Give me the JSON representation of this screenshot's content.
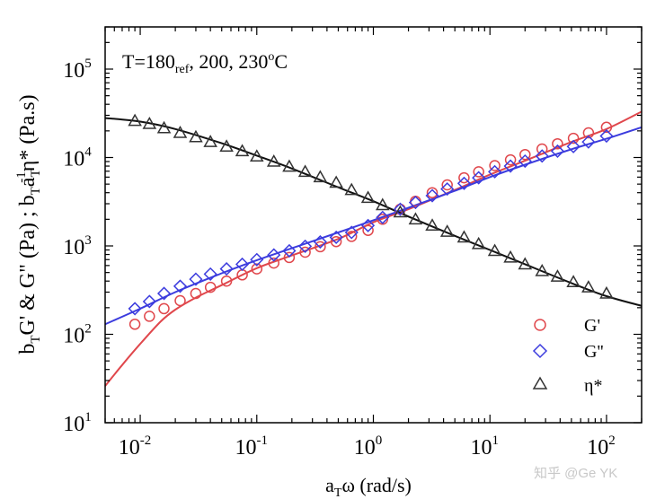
{
  "chart_data": {
    "type": "scatter",
    "title": "",
    "annotation": {
      "base": "T=180",
      "sub": "ref",
      "rest": ", 200, 230",
      "deg": "o",
      "unit": "C"
    },
    "xscale": "log",
    "yscale": "log",
    "xlim": [
      0.005,
      200
    ],
    "ylim": [
      10,
      300000
    ],
    "xlabel": {
      "a": "a",
      "sub": "T",
      "rest": "ω (rad/s)"
    },
    "ylabel": {
      "p1": "b",
      "s1": "T",
      "p2": "G' & G\" (Pa) ;  b",
      "s2": "T",
      "p3": "a",
      "s3": "T",
      "sup3": "-1",
      "p4": "η* (Pa.s)"
    },
    "xticks": [
      {
        "value": 0.01,
        "base": "10",
        "exp": "-2"
      },
      {
        "value": 0.1,
        "base": "10",
        "exp": "-1"
      },
      {
        "value": 1,
        "base": "10",
        "exp": "0"
      },
      {
        "value": 10,
        "base": "10",
        "exp": "1"
      },
      {
        "value": 100,
        "base": "10",
        "exp": "2"
      }
    ],
    "yticks": [
      {
        "value": 10,
        "base": "10",
        "exp": "1"
      },
      {
        "value": 100,
        "base": "10",
        "exp": "2"
      },
      {
        "value": 1000,
        "base": "10",
        "exp": "3"
      },
      {
        "value": 10000,
        "base": "10",
        "exp": "4"
      },
      {
        "value": 100000,
        "base": "10",
        "exp": "5"
      }
    ],
    "legend_position": "bottom-right",
    "series": [
      {
        "name": "G'",
        "marker": "circle",
        "color": "#e0474c",
        "x": [
          0.009,
          0.012,
          0.016,
          0.022,
          0.03,
          0.04,
          0.055,
          0.075,
          0.1,
          0.14,
          0.19,
          0.26,
          0.35,
          0.48,
          0.65,
          0.9,
          1.2,
          1.7,
          2.3,
          3.2,
          4.3,
          6,
          8,
          11,
          15,
          20,
          28,
          38,
          52,
          70,
          100
        ],
        "y": [
          130,
          160,
          195,
          240,
          290,
          340,
          400,
          470,
          550,
          640,
          740,
          850,
          980,
          1120,
          1280,
          1500,
          2000,
          2600,
          3200,
          4000,
          4900,
          5900,
          6900,
          8100,
          9400,
          10800,
          12500,
          14300,
          16500,
          19000,
          22000
        ]
      },
      {
        "name": "G''",
        "marker": "diamond",
        "color": "#3c3cde",
        "x": [
          0.009,
          0.012,
          0.016,
          0.022,
          0.03,
          0.04,
          0.055,
          0.075,
          0.1,
          0.14,
          0.19,
          0.26,
          0.35,
          0.48,
          0.65,
          0.9,
          1.2,
          1.7,
          2.3,
          3.2,
          4.3,
          6,
          8,
          11,
          15,
          20,
          28,
          38,
          52,
          70,
          100
        ],
        "y": [
          195,
          235,
          290,
          350,
          420,
          480,
          550,
          620,
          700,
          790,
          880,
          990,
          1110,
          1250,
          1420,
          1700,
          2100,
          2600,
          3100,
          3700,
          4400,
          5100,
          5900,
          6900,
          8000,
          9100,
          10400,
          11800,
          13300,
          15000,
          17500
        ]
      },
      {
        "name": "η*",
        "marker": "triangle",
        "color": "#333333",
        "x": [
          0.009,
          0.012,
          0.016,
          0.022,
          0.03,
          0.04,
          0.055,
          0.075,
          0.1,
          0.14,
          0.19,
          0.26,
          0.35,
          0.48,
          0.65,
          0.9,
          1.2,
          1.7,
          2.3,
          3.2,
          4.3,
          6,
          8,
          11,
          15,
          20,
          28,
          38,
          52,
          70,
          100
        ],
        "y": [
          26000,
          24000,
          21500,
          19000,
          17000,
          15000,
          13300,
          11800,
          10300,
          9000,
          7900,
          6900,
          6000,
          5200,
          4300,
          3500,
          2900,
          2400,
          2000,
          1700,
          1450,
          1250,
          1050,
          880,
          740,
          620,
          520,
          450,
          390,
          340,
          290
        ]
      }
    ],
    "fit_lines": [
      {
        "name": "G' fit",
        "color": "#e0474c",
        "x": [
          0.005,
          0.007,
          0.01,
          0.015,
          0.02,
          0.03,
          0.05,
          0.1,
          0.2,
          0.5,
          1,
          2,
          5,
          10,
          20,
          50,
          100,
          200
        ],
        "y": [
          26,
          45,
          78,
          140,
          190,
          260,
          360,
          560,
          780,
          1200,
          1850,
          2600,
          4300,
          6400,
          9200,
          15000,
          21000,
          33000
        ]
      },
      {
        "name": "G'' fit",
        "color": "#3c3cde",
        "x": [
          0.005,
          0.01,
          0.02,
          0.05,
          0.1,
          0.2,
          0.5,
          1,
          2,
          5,
          10,
          20,
          50,
          100,
          200
        ],
        "y": [
          130,
          195,
          300,
          490,
          690,
          940,
          1420,
          1950,
          2700,
          4200,
          6000,
          8300,
          12400,
          16300,
          22000
        ]
      },
      {
        "name": "η* fit",
        "color": "#111111",
        "x": [
          0.005,
          0.01,
          0.02,
          0.05,
          0.1,
          0.2,
          0.5,
          1,
          2,
          5,
          10,
          20,
          50,
          100,
          200
        ],
        "y": [
          28000,
          25500,
          21000,
          14500,
          10500,
          7500,
          4600,
          3200,
          2150,
          1300,
          900,
          620,
          380,
          270,
          210
        ]
      }
    ]
  },
  "watermark": "知乎 @Ge YK"
}
